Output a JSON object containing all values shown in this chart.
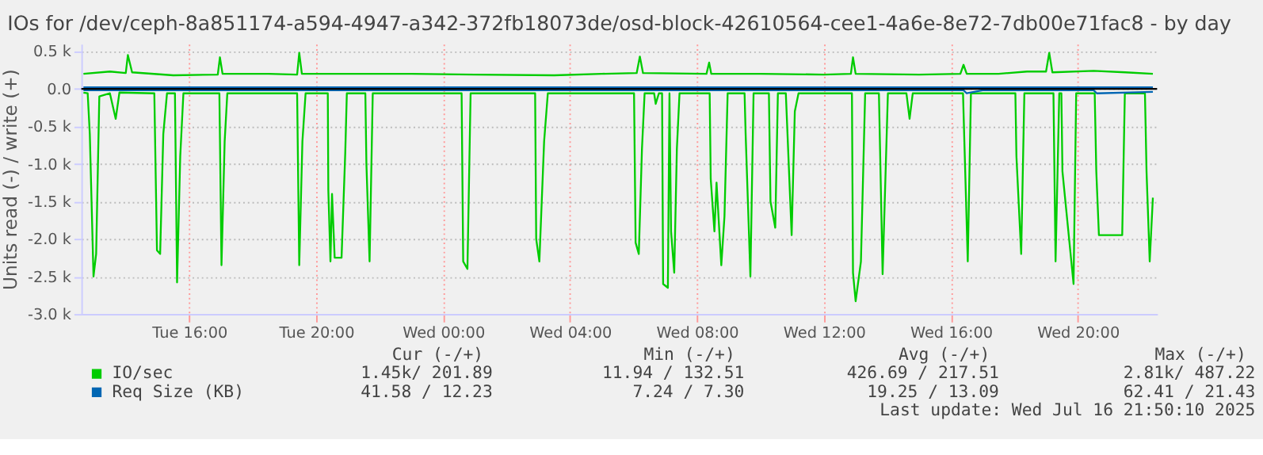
{
  "chart_data": {
    "type": "line",
    "title": "IOs for /dev/ceph-8a851174-a594-4947-a342-372fb18073de/osd-block-42610564-cee1-4a6e-8e72-7db00e71fac8 - by day",
    "ylabel": "Units read (-) / write (+)",
    "xlim": [
      "2025-07-15T12:36",
      "2025-07-16T22:30"
    ],
    "xticks": [
      {
        "value": "2025-07-15T16:00",
        "label": "Tue 16:00"
      },
      {
        "value": "2025-07-15T20:00",
        "label": "Tue 20:00"
      },
      {
        "value": "2025-07-16T00:00",
        "label": "Wed 00:00"
      },
      {
        "value": "2025-07-16T04:00",
        "label": "Wed 04:00"
      },
      {
        "value": "2025-07-16T08:00",
        "label": "Wed 08:00"
      },
      {
        "value": "2025-07-16T12:00",
        "label": "Wed 12:00"
      },
      {
        "value": "2025-07-16T16:00",
        "label": "Wed 16:00"
      },
      {
        "value": "2025-07-16T20:00",
        "label": "Wed 20:00"
      }
    ],
    "ylim": [
      -3000,
      600
    ],
    "yticks": [
      {
        "value": -3000,
        "label": "-3.0 k"
      },
      {
        "value": -2500,
        "label": "-2.5 k"
      },
      {
        "value": -2000,
        "label": "-2.0 k"
      },
      {
        "value": -1500,
        "label": "-1.5 k"
      },
      {
        "value": -1000,
        "label": "-1.0 k"
      },
      {
        "value": -500,
        "label": "-0.5 k"
      },
      {
        "value": 0,
        "label": "0.0"
      },
      {
        "value": 500,
        "label": "0.5 k"
      }
    ],
    "grid": true,
    "legend": "bottom",
    "ref_lines": [
      {
        "axis": "y",
        "value": 0,
        "color": "#000000"
      }
    ],
    "series": [
      {
        "name": "IO/sec",
        "color": "#00cc00",
        "x": [
          "2025-07-15T12:40",
          "2025-07-15T12:48",
          "2025-07-15T12:52",
          "2025-07-15T12:59",
          "2025-07-15T13:04",
          "2025-07-15T13:10",
          "2025-07-15T13:30",
          "2025-07-15T13:41",
          "2025-07-15T13:48",
          "2025-07-15T14:54",
          "2025-07-15T14:59",
          "2025-07-15T15:05",
          "2025-07-15T15:11",
          "2025-07-15T15:18",
          "2025-07-15T15:33",
          "2025-07-15T15:37",
          "2025-07-15T15:43",
          "2025-07-15T15:49",
          "2025-07-15T16:57",
          "2025-07-15T17:01",
          "2025-07-15T17:07",
          "2025-07-15T17:12",
          "2025-07-15T19:24",
          "2025-07-15T19:28",
          "2025-07-15T19:34",
          "2025-07-15T19:40",
          "2025-07-15T20:22",
          "2025-07-15T20:23",
          "2025-07-15T20:27",
          "2025-07-15T20:30",
          "2025-07-15T20:35",
          "2025-07-15T20:48",
          "2025-07-15T20:55",
          "2025-07-15T20:58",
          "2025-07-15T21:33",
          "2025-07-15T21:35",
          "2025-07-15T21:41",
          "2025-07-15T21:47",
          "2025-07-16T00:35",
          "2025-07-16T00:38",
          "2025-07-16T00:46",
          "2025-07-16T00:52",
          "2025-07-16T02:54",
          "2025-07-16T02:56",
          "2025-07-16T03:02",
          "2025-07-16T03:11",
          "2025-07-16T03:18",
          "2025-07-16T06:01",
          "2025-07-16T06:04",
          "2025-07-16T06:10",
          "2025-07-16T06:16",
          "2025-07-16T06:21",
          "2025-07-16T06:39",
          "2025-07-16T06:42",
          "2025-07-16T06:48",
          "2025-07-16T06:54",
          "2025-07-16T06:56",
          "2025-07-16T07:05",
          "2025-07-16T07:08",
          "2025-07-16T07:11",
          "2025-07-16T07:17",
          "2025-07-16T07:22",
          "2025-07-16T07:27",
          "2025-07-16T08:24",
          "2025-07-16T08:26",
          "2025-07-16T08:33",
          "2025-07-16T08:37",
          "2025-07-16T08:46",
          "2025-07-16T08:52",
          "2025-07-16T08:58",
          "2025-07-16T09:30",
          "2025-07-16T09:32",
          "2025-07-16T09:41",
          "2025-07-16T09:47",
          "2025-07-16T10:16",
          "2025-07-16T10:19",
          "2025-07-16T10:28",
          "2025-07-16T10:33",
          "2025-07-16T10:48",
          "2025-07-16T10:50",
          "2025-07-16T10:59",
          "2025-07-16T11:05",
          "2025-07-16T11:12",
          "2025-07-16T12:53",
          "2025-07-16T12:55",
          "2025-07-16T13:00",
          "2025-07-16T13:10",
          "2025-07-16T13:18",
          "2025-07-16T13:44",
          "2025-07-16T13:51",
          "2025-07-16T14:01",
          "2025-07-16T14:36",
          "2025-07-16T14:42",
          "2025-07-16T14:48",
          "2025-07-16T16:23",
          "2025-07-16T16:32",
          "2025-07-16T16:38",
          "2025-07-16T18:02",
          "2025-07-16T18:04",
          "2025-07-16T18:13",
          "2025-07-16T18:19",
          "2025-07-16T19:14",
          "2025-07-16T19:18",
          "2025-07-16T19:25",
          "2025-07-16T19:29",
          "2025-07-16T19:31",
          "2025-07-16T19:52",
          "2025-07-16T19:57",
          "2025-07-16T20:32",
          "2025-07-16T20:35",
          "2025-07-16T20:40",
          "2025-07-16T21:24",
          "2025-07-16T21:29",
          "2025-07-16T22:07",
          "2025-07-16T22:10",
          "2025-07-16T22:16",
          "2025-07-16T22:22"
        ],
        "values": [
          -50,
          -60,
          -600,
          -2500,
          -2200,
          -100,
          -60,
          -400,
          -50,
          -60,
          -2150,
          -2200,
          -600,
          -60,
          -60,
          -2580,
          -900,
          -60,
          -60,
          -2350,
          -700,
          -60,
          -60,
          -2350,
          -700,
          -60,
          -60,
          -1350,
          -2300,
          -1400,
          -2250,
          -2250,
          -850,
          -60,
          -60,
          -1000,
          -2300,
          -60,
          -60,
          -2300,
          -2400,
          -60,
          -60,
          -2000,
          -2300,
          -700,
          -60,
          -60,
          -2050,
          -2200,
          -800,
          -60,
          -60,
          -200,
          -60,
          -60,
          -2600,
          -2650,
          -60,
          -1900,
          -2450,
          -800,
          -60,
          -60,
          -1200,
          -1900,
          -1250,
          -2350,
          -1700,
          -60,
          -60,
          -600,
          -2500,
          -60,
          -60,
          -1500,
          -1850,
          -60,
          -60,
          -400,
          -1950,
          -300,
          -60,
          -60,
          -2450,
          -2830,
          -2300,
          -60,
          -60,
          -2470,
          -60,
          -60,
          -400,
          -60,
          -60,
          -2300,
          -60,
          -60,
          -900,
          -2200,
          -60,
          -60,
          -2300,
          -60,
          -60,
          -1100,
          -2600,
          -60,
          -60,
          -1100,
          -1950,
          -1950,
          -60,
          -60,
          -1100,
          -2300,
          -1450
        ]
      },
      {
        "color": "#00cc00",
        "x": [
          "2025-07-15T12:40",
          "2025-07-15T13:30",
          "2025-07-15T14:00",
          "2025-07-15T14:04",
          "2025-07-15T14:12",
          "2025-07-15T15:30",
          "2025-07-15T16:54",
          "2025-07-15T16:58",
          "2025-07-15T17:03",
          "2025-07-15T18:30",
          "2025-07-15T19:24",
          "2025-07-15T19:28",
          "2025-07-15T19:33",
          "2025-07-15T21:00",
          "2025-07-15T23:00",
          "2025-07-16T01:00",
          "2025-07-16T03:30",
          "2025-07-16T05:00",
          "2025-07-16T06:06",
          "2025-07-16T06:12",
          "2025-07-16T06:18",
          "2025-07-16T08:18",
          "2025-07-16T08:23",
          "2025-07-16T08:27",
          "2025-07-16T10:00",
          "2025-07-16T12:00",
          "2025-07-16T12:51",
          "2025-07-16T12:55",
          "2025-07-16T13:00",
          "2025-07-16T15:00",
          "2025-07-16T16:18",
          "2025-07-16T16:24",
          "2025-07-16T16:30",
          "2025-07-16T17:30",
          "2025-07-16T18:24",
          "2025-07-16T19:00",
          "2025-07-16T19:06",
          "2025-07-16T19:12",
          "2025-07-16T20:30",
          "2025-07-16T21:30",
          "2025-07-16T22:22"
        ],
        "values": [
          200,
          230,
          210,
          450,
          220,
          180,
          190,
          420,
          200,
          200,
          190,
          480,
          200,
          200,
          200,
          190,
          180,
          200,
          210,
          430,
          210,
          200,
          350,
          200,
          200,
          190,
          200,
          420,
          200,
          190,
          200,
          320,
          200,
          200,
          230,
          230,
          480,
          220,
          240,
          220,
          200
        ]
      },
      {
        "name": "Req Size (KB)",
        "color": "#0066b3",
        "x": [
          "2025-07-15T12:40",
          "2025-07-15T20:00",
          "2025-07-16T04:00",
          "2025-07-16T12:00",
          "2025-07-16T16:24",
          "2025-07-16T16:30",
          "2025-07-16T17:00",
          "2025-07-16T20:30",
          "2025-07-16T20:36",
          "2025-07-16T22:22"
        ],
        "values": [
          -20,
          -20,
          -20,
          -20,
          -20,
          -60,
          -20,
          -20,
          -60,
          -40
        ]
      },
      {
        "color": "#0066b3",
        "x": [
          "2025-07-15T12:40",
          "2025-07-16T22:22"
        ],
        "values": [
          20,
          20
        ]
      }
    ],
    "annotations": [
      "Cur (-/+)",
      "Min (-/+)",
      "Avg (-/+)",
      "Max (-/+)",
      "1.45k/      201.89",
      "11.94 /      132.51",
      "426.69 /      217.51",
      "2.81k/      487.22",
      "41.58 /       12.23",
      "7.24 /        7.30",
      "19.25 /       13.09",
      "62.41 /       21.43",
      "Last update: Wed Jul 16 21:50:10 2025"
    ]
  }
}
